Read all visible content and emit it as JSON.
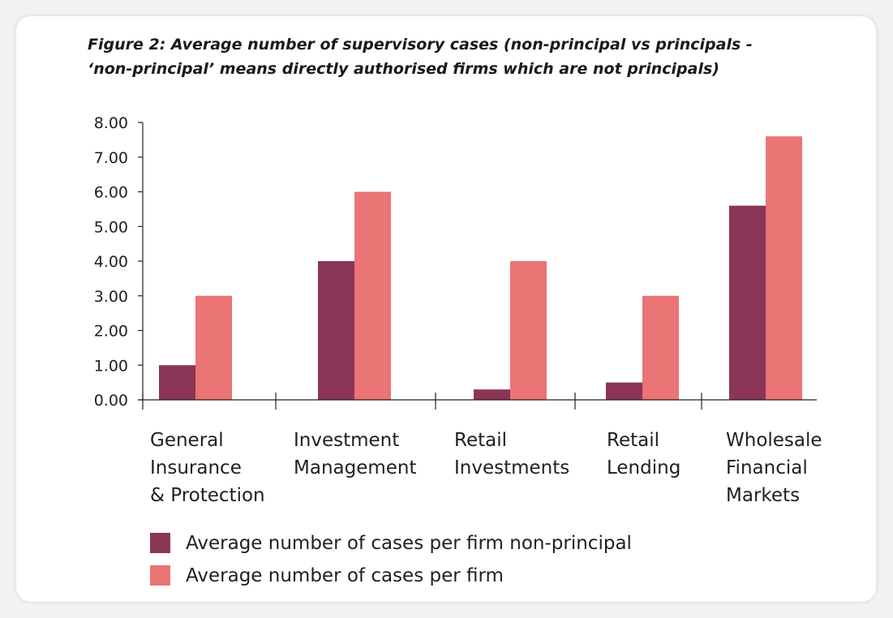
{
  "title": {
    "line1": "Figure 2: Average number of supervisory cases (non-principal vs principals -",
    "line2": "‘non-principal’ means directly authorised firms which are not principals)"
  },
  "colors": {
    "non_principal": "#8b3557",
    "per_firm": "#eb7475",
    "axis": "#222222",
    "text": "#1f1f1f"
  },
  "chart_data": {
    "type": "bar",
    "title": "Figure 2: Average number of supervisory cases (non-principal vs principals - ‘non-principal’ means directly authorised firms which are not principals)",
    "categories": [
      [
        "General",
        "Insurance",
        "& Protection"
      ],
      [
        "Investment",
        "Management"
      ],
      [
        "Retail",
        "Investments"
      ],
      [
        "Retail",
        "Lending"
      ],
      [
        "Wholesale",
        "Financial",
        "Markets"
      ]
    ],
    "series": [
      {
        "name": "Average number of cases per firm non-principal",
        "values": [
          1.0,
          4.0,
          0.3,
          0.5,
          5.6
        ]
      },
      {
        "name": "Average number of cases per firm",
        "values": [
          3.0,
          6.0,
          4.0,
          3.0,
          7.6
        ]
      }
    ],
    "yticks": [
      "0.00",
      "1.00",
      "2.00",
      "3.00",
      "4.00",
      "5.00",
      "6.00",
      "7.00",
      "8.00"
    ],
    "ylim": [
      0,
      8
    ],
    "xlabel": "",
    "ylabel": "",
    "grid": false,
    "legend": "bottom-left"
  },
  "legend": {
    "items": [
      {
        "label": "Average number of cases per firm non-principal"
      },
      {
        "label": "Average number of cases per firm"
      }
    ]
  }
}
